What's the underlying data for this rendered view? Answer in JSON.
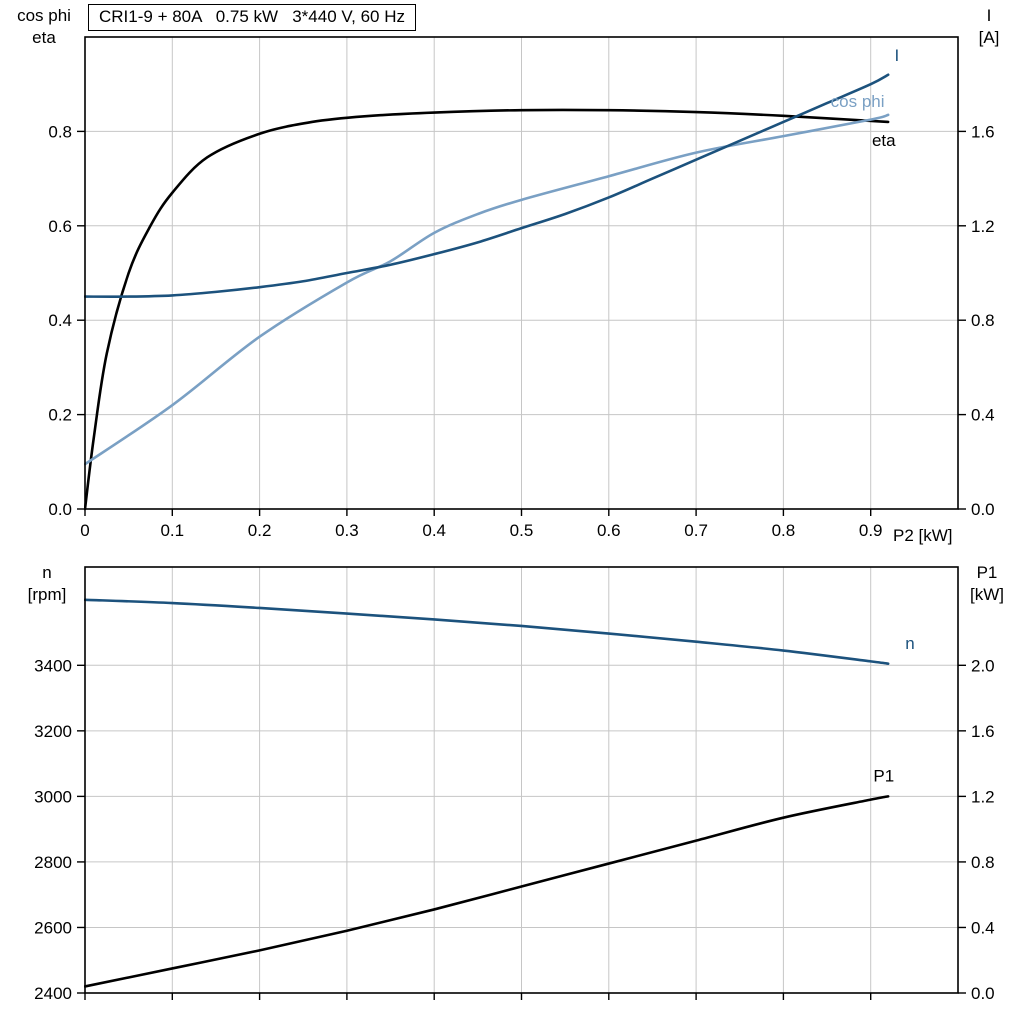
{
  "colors": {
    "dark_blue": "#1c527d",
    "light_blue": "#7aa0c4",
    "black": "#000000",
    "grid": "#c6c6c6",
    "border": "#000000",
    "background": "#ffffff"
  },
  "chart_data": [
    {
      "type": "line",
      "title": "CRI1-9 + 80A   0.75 kW   3*440 V, 60 Hz",
      "xlabel": "P2 [kW]",
      "left_axis_title": {
        "line1": "cos phi",
        "line2": "eta"
      },
      "right_axis_title": {
        "line1": "I",
        "line2": "[A]"
      },
      "xlim": [
        0,
        1.0
      ],
      "x_ticks": [
        0,
        0.1,
        0.2,
        0.3,
        0.4,
        0.5,
        0.6,
        0.7,
        0.8,
        0.9
      ],
      "x_tick_labels": [
        "0",
        "0.1",
        "0.2",
        "0.3",
        "0.4",
        "0.5",
        "0.6",
        "0.7",
        "0.8",
        "0.9"
      ],
      "show_x_tick_labels": true,
      "left_ylim": [
        0,
        1.0
      ],
      "left_ticks": [
        0,
        0.2,
        0.4,
        0.6,
        0.8
      ],
      "left_tick_labels": [
        "0.0",
        "0.2",
        "0.4",
        "0.6",
        "0.8"
      ],
      "right_ylim": [
        0,
        2.0
      ],
      "right_ticks": [
        0,
        0.4,
        0.8,
        1.2,
        1.6
      ],
      "right_tick_labels": [
        "0.0",
        "0.4",
        "0.8",
        "1.2",
        "1.6"
      ],
      "grid": true,
      "legend_position": "end-of-curve",
      "series": [
        {
          "name": "eta",
          "axis": "left",
          "color": "#000000",
          "label": "eta",
          "label_at": [
            0.915,
            0.78
          ],
          "label_color": "#000000",
          "x": [
            0,
            0.01,
            0.025,
            0.05,
            0.075,
            0.1,
            0.14,
            0.2,
            0.26,
            0.32,
            0.4,
            0.5,
            0.6,
            0.7,
            0.8,
            0.92
          ],
          "y": [
            0,
            0.15,
            0.33,
            0.5,
            0.6,
            0.67,
            0.745,
            0.795,
            0.82,
            0.832,
            0.84,
            0.845,
            0.845,
            0.841,
            0.833,
            0.82
          ]
        },
        {
          "name": "cos phi",
          "axis": "left",
          "color": "#7aa0c4",
          "label": "cos phi",
          "label_at": [
            0.885,
            0.862
          ],
          "label_color": "#7aa0c4",
          "x": [
            0,
            0.1,
            0.2,
            0.3,
            0.35,
            0.4,
            0.45,
            0.5,
            0.6,
            0.7,
            0.8,
            0.9,
            0.92
          ],
          "y": [
            0.095,
            0.22,
            0.365,
            0.48,
            0.525,
            0.585,
            0.625,
            0.655,
            0.705,
            0.755,
            0.79,
            0.825,
            0.835
          ]
        },
        {
          "name": "I",
          "axis": "right",
          "color": "#1c527d",
          "label": "I",
          "label_at": [
            0.93,
            1.92
          ],
          "label_color": "#1c527d",
          "x": [
            0,
            0.05,
            0.1,
            0.15,
            0.2,
            0.25,
            0.3,
            0.35,
            0.4,
            0.45,
            0.5,
            0.55,
            0.6,
            0.65,
            0.7,
            0.75,
            0.8,
            0.85,
            0.9,
            0.92
          ],
          "y": [
            0.9,
            0.9,
            0.905,
            0.92,
            0.94,
            0.965,
            1.0,
            1.035,
            1.08,
            1.13,
            1.19,
            1.25,
            1.32,
            1.4,
            1.48,
            1.56,
            1.64,
            1.72,
            1.8,
            1.84
          ]
        }
      ]
    },
    {
      "type": "line",
      "title": "",
      "xlabel": "",
      "left_axis_title": {
        "line1": "n",
        "line2": "[rpm]"
      },
      "right_axis_title": {
        "line1": "P1",
        "line2": "[kW]"
      },
      "xlim": [
        0,
        1.0
      ],
      "x_ticks": [
        0,
        0.1,
        0.2,
        0.3,
        0.4,
        0.5,
        0.6,
        0.7,
        0.8,
        0.9
      ],
      "x_tick_labels": [],
      "show_x_tick_labels": false,
      "left_ylim": [
        2400,
        3700
      ],
      "left_ticks": [
        2400,
        2600,
        2800,
        3000,
        3200,
        3400
      ],
      "left_tick_labels": [
        "2400",
        "2600",
        "2800",
        "3000",
        "3200",
        "3400"
      ],
      "right_ylim": [
        0,
        2.6
      ],
      "right_ticks": [
        0,
        0.4,
        0.8,
        1.2,
        1.6,
        2.0
      ],
      "right_tick_labels": [
        "0.0",
        "0.4",
        "0.8",
        "1.2",
        "1.6",
        "2.0"
      ],
      "grid": true,
      "legend_position": "end-of-curve",
      "series": [
        {
          "name": "n",
          "axis": "left",
          "color": "#1c527d",
          "label": "n",
          "label_at": [
            0.945,
            3465
          ],
          "label_color": "#1c527d",
          "x": [
            0,
            0.1,
            0.2,
            0.3,
            0.4,
            0.5,
            0.6,
            0.7,
            0.8,
            0.9,
            0.92
          ],
          "y": [
            3600,
            3590,
            3575,
            3558,
            3540,
            3520,
            3497,
            3472,
            3445,
            3412,
            3405
          ]
        },
        {
          "name": "P1",
          "axis": "right",
          "color": "#000000",
          "label": "P1",
          "label_at": [
            0.915,
            1.32
          ],
          "label_color": "#000000",
          "x": [
            0,
            0.1,
            0.2,
            0.3,
            0.4,
            0.5,
            0.6,
            0.7,
            0.8,
            0.9,
            0.92
          ],
          "y": [
            0.04,
            0.15,
            0.26,
            0.38,
            0.51,
            0.65,
            0.79,
            0.93,
            1.07,
            1.18,
            1.2
          ]
        }
      ]
    }
  ]
}
